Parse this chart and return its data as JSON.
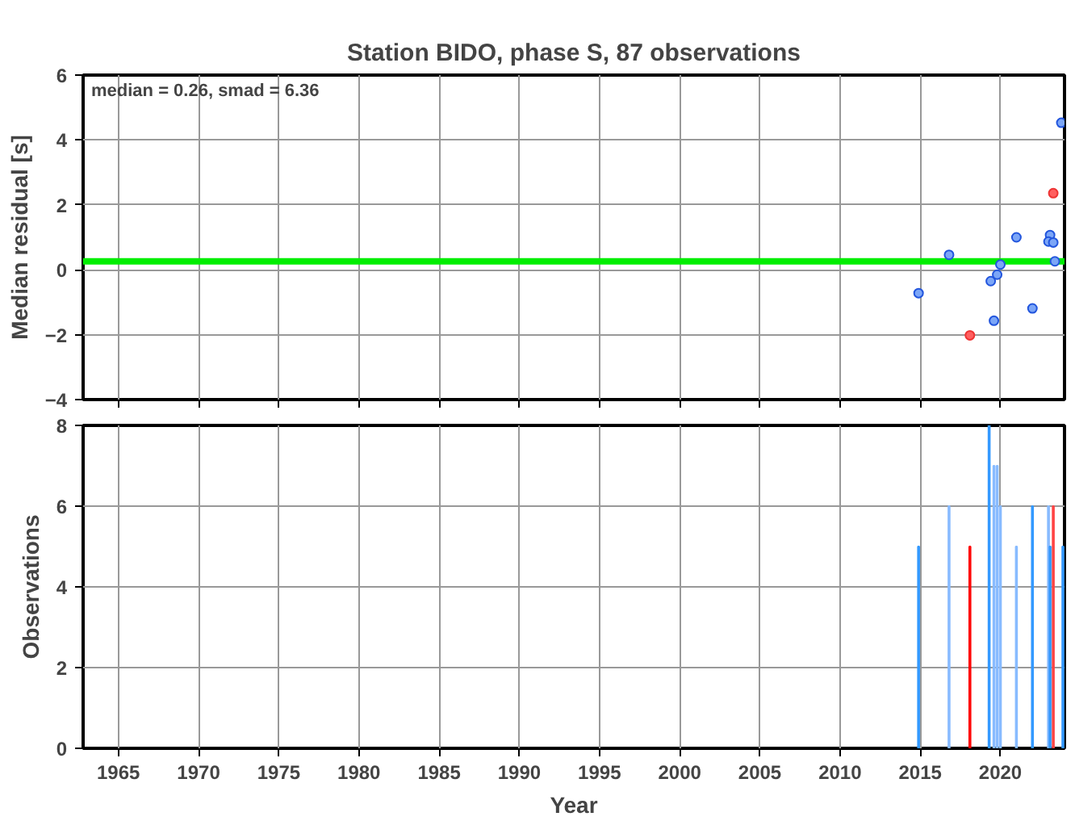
{
  "chart_data": [
    {
      "type": "scatter",
      "title": "Station BIDO, phase S, 87 observations",
      "ylabel": "Median residual [s]",
      "x": [
        2014.9,
        2016.8,
        2018.1,
        2019.4,
        2019.6,
        2019.8,
        2020.0,
        2021.0,
        2022.0,
        2023.1,
        2023.0,
        2023.3,
        2023.3,
        2023.4,
        2023.8
      ],
      "values": [
        -0.72,
        0.46,
        -2.02,
        -0.35,
        -1.57,
        -0.15,
        0.16,
        1.0,
        -1.19,
        1.07,
        0.87,
        0.84,
        2.36,
        0.26,
        4.53
      ],
      "colors": [
        "#7ca6f7",
        "#7ca6f7",
        "#ff6060",
        "#7ca6f7",
        "#7ca6f7",
        "#7ca6f7",
        "#7ca6f7",
        "#7ca6f7",
        "#7ca6f7",
        "#7ca6f7",
        "#7ca6f7",
        "#7ca6f7",
        "#ff6060",
        "#7ca6f7",
        "#7ca6f7"
      ],
      "marker": "circle",
      "xlim": [
        1962.8,
        2024.0
      ],
      "xticks": [
        1965,
        1970,
        1975,
        1980,
        1985,
        1990,
        1995,
        2000,
        2005,
        2010,
        2015,
        2020
      ],
      "ylim": [
        -4,
        6
      ],
      "yticks": [
        -4,
        -2,
        0,
        2,
        4,
        6
      ],
      "grid": true,
      "tick_labels": "y",
      "ref_lines": [
        {
          "axis": "y",
          "value": 0.26,
          "color": "#00ee00"
        }
      ],
      "annotations": [
        "median = 0.26, smad = 6.36"
      ]
    },
    {
      "type": "bar",
      "xlabel": "Year",
      "ylabel": "Observations",
      "x": [
        2014.9,
        2016.8,
        2018.1,
        2019.3,
        2019.6,
        2019.8,
        2020.0,
        2021.0,
        2022.0,
        2023.0,
        2023.1,
        2023.3,
        2023.9
      ],
      "values": [
        5,
        6,
        5,
        8,
        7,
        7,
        6,
        5,
        6,
        6,
        5,
        6,
        5
      ],
      "colors": [
        "#3399ff",
        "#88bbff",
        "#ff0000",
        "#3399ff",
        "#88bbff",
        "#88bbff",
        "#88bbff",
        "#88bbff",
        "#3399ff",
        "#88bbff",
        "#3399ff",
        "#ff4444",
        "#3399ff"
      ],
      "xlim": [
        1962.8,
        2024.0
      ],
      "xticks": [
        1965,
        1970,
        1975,
        1980,
        1985,
        1990,
        1995,
        2000,
        2005,
        2010,
        2015,
        2020
      ],
      "ylim": [
        0,
        8
      ],
      "yticks": [
        0,
        2,
        4,
        6,
        8
      ],
      "grid": true
    }
  ]
}
